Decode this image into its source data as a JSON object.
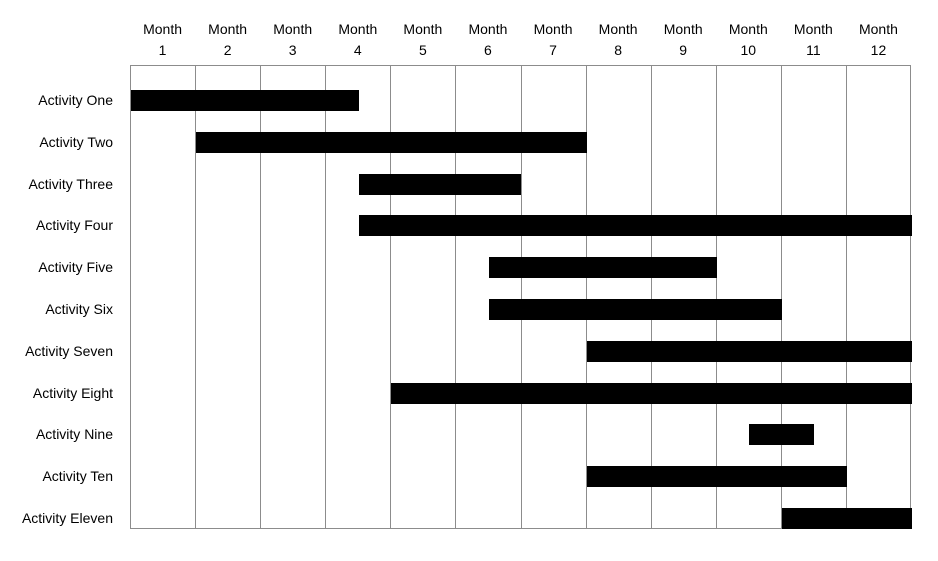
{
  "chart_data": {
    "type": "bar",
    "subtype": "gantt",
    "title": "",
    "x_axis": {
      "tick_word": "Month",
      "ticks": [
        "1",
        "2",
        "3",
        "4",
        "5",
        "6",
        "7",
        "8",
        "9",
        "10",
        "11",
        "12"
      ],
      "xlim": [
        0,
        12
      ],
      "grid": true,
      "legend": "none"
    },
    "categories": [
      "Activity One",
      "Activity Two",
      "Activity Three",
      "Activity Four",
      "Activity Five",
      "Activity Six",
      "Activity Seven",
      "Activity Eight",
      "Activity Nine",
      "Activity Ten",
      "Activity Eleven"
    ],
    "bars": [
      {
        "activity": "Activity One",
        "start": 0,
        "end": 3.5
      },
      {
        "activity": "Activity Two",
        "start": 1,
        "end": 7
      },
      {
        "activity": "Activity Three",
        "start": 3.5,
        "end": 6
      },
      {
        "activity": "Activity Four",
        "start": 3.5,
        "end": 12
      },
      {
        "activity": "Activity Five",
        "start": 5.5,
        "end": 9
      },
      {
        "activity": "Activity Six",
        "start": 5.5,
        "end": 10
      },
      {
        "activity": "Activity Seven",
        "start": 7,
        "end": 12
      },
      {
        "activity": "Activity Eight",
        "start": 4,
        "end": 12
      },
      {
        "activity": "Activity Nine",
        "start": 9.5,
        "end": 10.5
      },
      {
        "activity": "Activity Ten",
        "start": 7,
        "end": 11
      },
      {
        "activity": "Activity Eleven",
        "start": 10,
        "end": 12
      }
    ],
    "units": "months elapsed from start of Month 1",
    "colors": {
      "bar": "#000000",
      "grid": "#8c8c8c",
      "border": "#8c8c8c",
      "text": "#000000",
      "background": "#ffffff"
    }
  }
}
